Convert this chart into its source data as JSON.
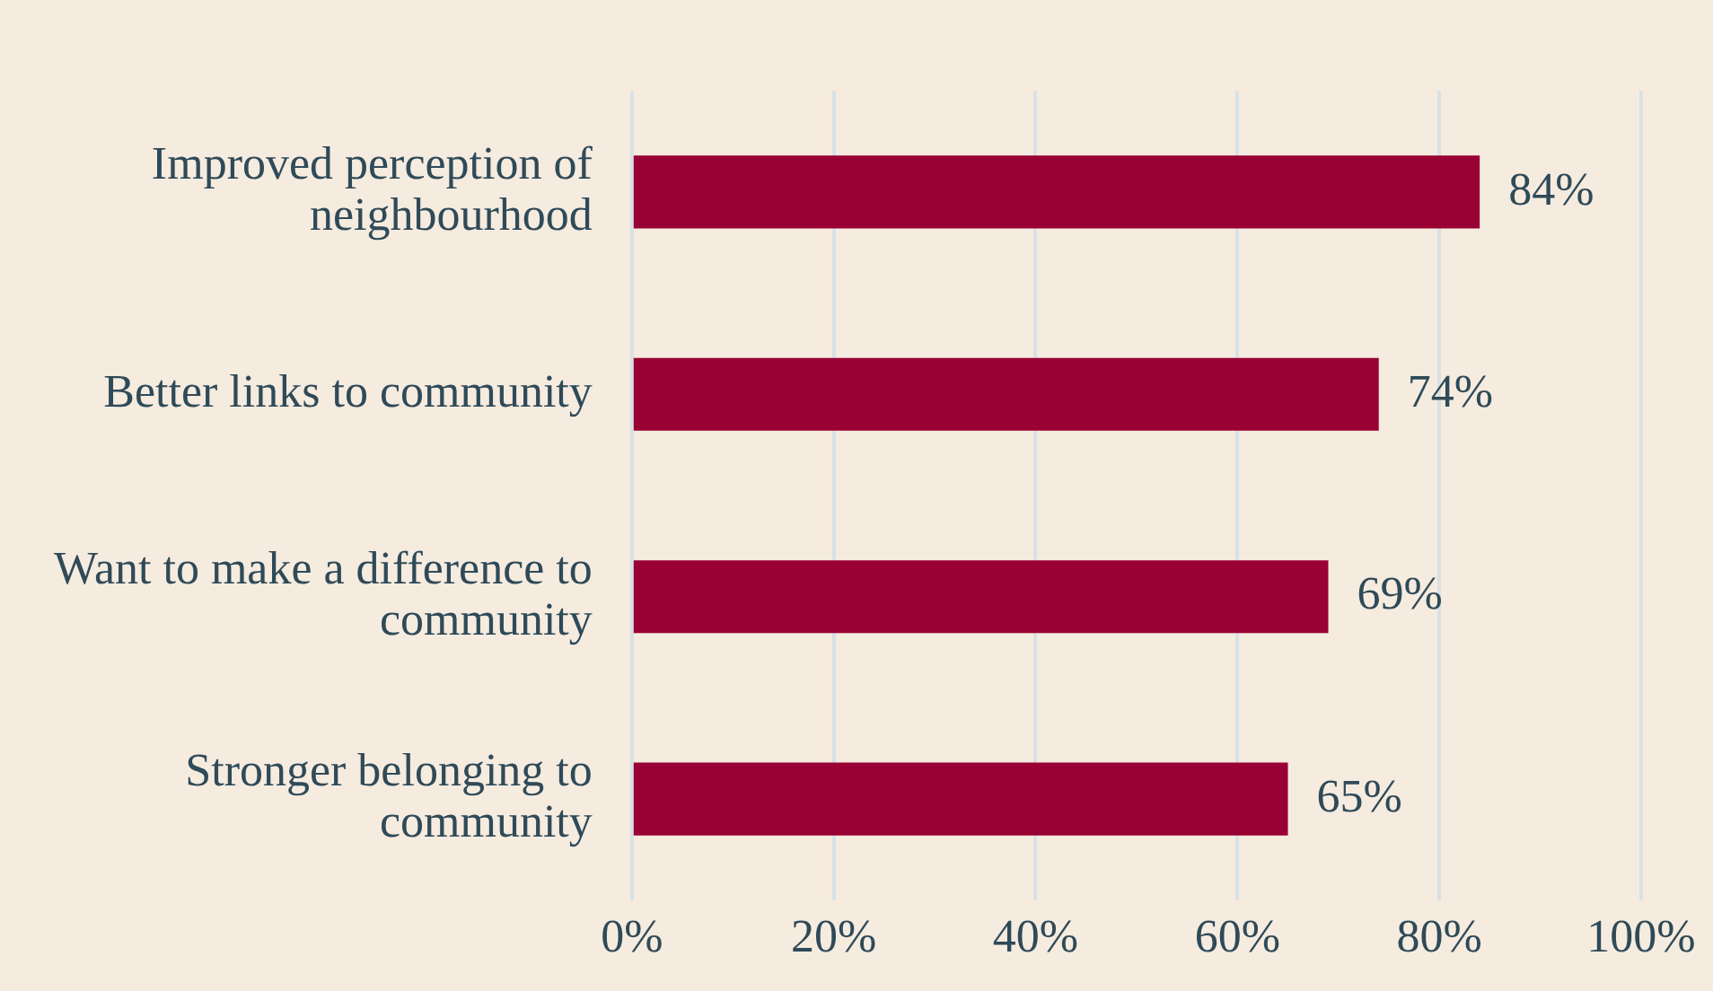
{
  "chart_data": {
    "type": "bar",
    "orientation": "horizontal",
    "categories": [
      "Improved perception of neighbourhood",
      "Better links to community",
      "Want to make a difference to community",
      "Stronger belonging to community"
    ],
    "values": [
      84,
      74,
      69,
      65
    ],
    "color": "#990033",
    "value_labels": [
      "84%",
      "74%",
      "69%",
      "65%"
    ],
    "xlim": [
      0,
      100
    ],
    "xticks": [
      {
        "value": 0,
        "label": "0%"
      },
      {
        "value": 20,
        "label": "20%"
      },
      {
        "value": 40,
        "label": "40%"
      },
      {
        "value": 60,
        "label": "60%"
      },
      {
        "value": 80,
        "label": "80%"
      },
      {
        "value": 100,
        "label": "100%"
      }
    ],
    "grid": "x",
    "legend": false
  }
}
